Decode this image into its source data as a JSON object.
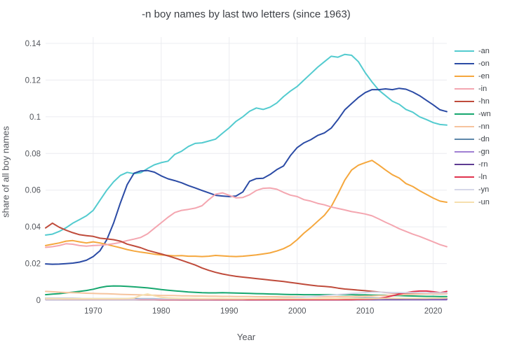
{
  "chart_data": {
    "type": "line",
    "title": "-n boy names by last two letters (since 1963)",
    "xlabel": "Year",
    "ylabel": "share of all boy names",
    "x_range": [
      1963,
      2022
    ],
    "y_range": [
      0,
      0.1435
    ],
    "x_tick_values": [
      1970,
      1980,
      1990,
      2000,
      2010,
      2020
    ],
    "x_tick_labels": [
      "1970",
      "1980",
      "1990",
      "2000",
      "2010",
      "2020"
    ],
    "y_tick_values": [
      0,
      0.02,
      0.04,
      0.06,
      0.08,
      0.1,
      0.12,
      0.14
    ],
    "y_tick_labels": [
      "0",
      "0.02",
      "0.04",
      "0.06",
      "0.08",
      "0.1",
      "0.12",
      "0.14"
    ],
    "grid": true,
    "legend_position": "right",
    "colors": {
      "grid": "#ebecf0",
      "zeroline": "#d9dbe6",
      "tick_text": "#53565c",
      "title_text": "#3d4046"
    },
    "years": [
      1963,
      1964,
      1965,
      1966,
      1967,
      1968,
      1969,
      1970,
      1971,
      1972,
      1973,
      1974,
      1975,
      1976,
      1977,
      1978,
      1979,
      1980,
      1981,
      1982,
      1983,
      1984,
      1985,
      1986,
      1987,
      1988,
      1989,
      1990,
      1991,
      1992,
      1993,
      1994,
      1995,
      1996,
      1997,
      1998,
      1999,
      2000,
      2001,
      2002,
      2003,
      2004,
      2005,
      2006,
      2007,
      2008,
      2009,
      2010,
      2011,
      2012,
      2013,
      2014,
      2015,
      2016,
      2017,
      2018,
      2019,
      2020,
      2021,
      2022
    ],
    "series": [
      {
        "name": "-an",
        "color": "#53cbcf",
        "values": [
          0.0355,
          0.036,
          0.0375,
          0.0395,
          0.042,
          0.044,
          0.046,
          0.049,
          0.0545,
          0.06,
          0.0645,
          0.068,
          0.0697,
          0.069,
          0.0695,
          0.0718,
          0.0738,
          0.075,
          0.0758,
          0.0795,
          0.0812,
          0.0838,
          0.0855,
          0.0858,
          0.0868,
          0.0878,
          0.091,
          0.094,
          0.0975,
          0.1,
          0.103,
          0.1048,
          0.104,
          0.1052,
          0.1075,
          0.111,
          0.114,
          0.1165,
          0.12,
          0.1235,
          0.127,
          0.13,
          0.133,
          0.1325,
          0.134,
          0.1335,
          0.13,
          0.124,
          0.119,
          0.1145,
          0.1115,
          0.1085,
          0.1068,
          0.104,
          0.1025,
          0.1,
          0.0985,
          0.0968,
          0.0958,
          0.0955
        ]
      },
      {
        "name": "-on",
        "color": "#2b4ba5",
        "values": [
          0.0198,
          0.0196,
          0.0197,
          0.0199,
          0.0202,
          0.0208,
          0.0218,
          0.0238,
          0.027,
          0.033,
          0.042,
          0.053,
          0.063,
          0.0692,
          0.0705,
          0.0707,
          0.0698,
          0.0678,
          0.0662,
          0.0652,
          0.064,
          0.0625,
          0.0612,
          0.0598,
          0.0585,
          0.0572,
          0.0568,
          0.0565,
          0.0568,
          0.059,
          0.0648,
          0.0663,
          0.0665,
          0.0685,
          0.0712,
          0.0732,
          0.0788,
          0.0832,
          0.0858,
          0.0875,
          0.0898,
          0.0912,
          0.0938,
          0.0985,
          0.1038,
          0.1072,
          0.1105,
          0.1132,
          0.1148,
          0.1148,
          0.1152,
          0.1148,
          0.1155,
          0.115,
          0.1135,
          0.1115,
          0.109,
          0.1065,
          0.1038,
          0.1028
        ]
      },
      {
        "name": "-en",
        "color": "#f5a73d",
        "values": [
          0.0298,
          0.0305,
          0.0312,
          0.0322,
          0.0325,
          0.0318,
          0.0312,
          0.0318,
          0.0312,
          0.0304,
          0.0295,
          0.0286,
          0.0276,
          0.0268,
          0.0262,
          0.0257,
          0.0251,
          0.0247,
          0.0244,
          0.0242,
          0.0243,
          0.024,
          0.024,
          0.0238,
          0.024,
          0.0244,
          0.0242,
          0.0239,
          0.0238,
          0.024,
          0.0243,
          0.0247,
          0.0252,
          0.0258,
          0.0268,
          0.0281,
          0.03,
          0.033,
          0.0366,
          0.0396,
          0.043,
          0.0463,
          0.051,
          0.058,
          0.0655,
          0.071,
          0.0736,
          0.075,
          0.0762,
          0.0737,
          0.071,
          0.0684,
          0.0666,
          0.0636,
          0.062,
          0.0597,
          0.0577,
          0.0557,
          0.054,
          0.0534
        ]
      },
      {
        "name": "-in",
        "color": "#f4a6b0",
        "values": [
          0.0288,
          0.0292,
          0.0298,
          0.0308,
          0.0305,
          0.0298,
          0.0295,
          0.0298,
          0.03,
          0.0303,
          0.0308,
          0.0315,
          0.0325,
          0.0333,
          0.0342,
          0.0362,
          0.0392,
          0.0422,
          0.0452,
          0.0478,
          0.049,
          0.0495,
          0.0502,
          0.0515,
          0.0548,
          0.0578,
          0.0585,
          0.0572,
          0.0558,
          0.056,
          0.0575,
          0.0598,
          0.061,
          0.0612,
          0.0605,
          0.0588,
          0.0573,
          0.0565,
          0.0548,
          0.054,
          0.0528,
          0.052,
          0.0508,
          0.05,
          0.0492,
          0.0483,
          0.0477,
          0.047,
          0.046,
          0.0443,
          0.0425,
          0.0408,
          0.039,
          0.0375,
          0.036,
          0.0348,
          0.0333,
          0.0318,
          0.0303,
          0.0292
        ]
      },
      {
        "name": "-hn",
        "color": "#bf4b3b",
        "values": [
          0.0394,
          0.042,
          0.0398,
          0.0382,
          0.0368,
          0.0357,
          0.0352,
          0.0348,
          0.0338,
          0.0334,
          0.033,
          0.0322,
          0.0306,
          0.0296,
          0.0286,
          0.0272,
          0.0262,
          0.0252,
          0.0242,
          0.023,
          0.0218,
          0.0205,
          0.0192,
          0.0176,
          0.0163,
          0.0152,
          0.0143,
          0.0136,
          0.013,
          0.0126,
          0.0122,
          0.0118,
          0.0114,
          0.011,
          0.0106,
          0.0102,
          0.0097,
          0.0092,
          0.0087,
          0.0082,
          0.0078,
          0.0075,
          0.0072,
          0.0066,
          0.0061,
          0.0058,
          0.0055,
          0.0052,
          0.0048,
          0.0045,
          0.0042,
          0.004,
          0.0039,
          0.0038,
          0.0037,
          0.0037,
          0.0036,
          0.0035,
          0.0035,
          0.0036
        ]
      },
      {
        "name": "-wn",
        "color": "#17a76f",
        "values": [
          0.003,
          0.0033,
          0.0036,
          0.004,
          0.0044,
          0.0048,
          0.0053,
          0.006,
          0.0069,
          0.0076,
          0.0078,
          0.0077,
          0.0075,
          0.0073,
          0.007,
          0.0067,
          0.0063,
          0.0058,
          0.0054,
          0.0051,
          0.0048,
          0.0045,
          0.0043,
          0.0041,
          0.004,
          0.004,
          0.0041,
          0.004,
          0.0039,
          0.0038,
          0.0037,
          0.0036,
          0.0035,
          0.0034,
          0.0033,
          0.0032,
          0.0031,
          0.0031,
          0.003,
          0.003,
          0.003,
          0.003,
          0.003,
          0.003,
          0.003,
          0.003,
          0.0029,
          0.0029,
          0.0028,
          0.0028,
          0.0027,
          0.0026,
          0.0025,
          0.0024,
          0.0023,
          0.0022,
          0.0021,
          0.0021,
          0.002,
          0.002
        ]
      },
      {
        "name": "-nn",
        "color": "#f6c49e",
        "values": [
          0.0048,
          0.0046,
          0.0044,
          0.0042,
          0.0041,
          0.004,
          0.0038,
          0.0037,
          0.0036,
          0.0035,
          0.0034,
          0.0032,
          0.0031,
          0.003,
          0.0029,
          0.0028,
          0.0027,
          0.0026,
          0.0026,
          0.0025,
          0.0024,
          0.0024,
          0.0023,
          0.0023,
          0.0022,
          0.0022,
          0.0021,
          0.0021,
          0.002,
          0.002,
          0.002,
          0.0019,
          0.0019,
          0.0019,
          0.0019,
          0.0018,
          0.0018,
          0.0018,
          0.0018,
          0.0018,
          0.0018,
          0.0018,
          0.0018,
          0.0019,
          0.0019,
          0.002,
          0.0021,
          0.0022,
          0.0023,
          0.0025,
          0.0026,
          0.0028,
          0.0029,
          0.0031,
          0.0032,
          0.0033,
          0.0034,
          0.0035,
          0.0035,
          0.0036
        ]
      },
      {
        "name": "-dn",
        "color": "#5d87aa",
        "values": [
          0.001,
          0.001,
          0.0009,
          0.0009,
          0.0009,
          0.0008,
          0.0008,
          0.0008,
          0.0008,
          0.0008,
          0.0008,
          0.0008,
          0.0008,
          0.0008,
          0.0008,
          0.0008,
          0.0008,
          0.0007,
          0.0007,
          0.0007,
          0.0007,
          0.0007,
          0.0007,
          0.0007,
          0.0007,
          0.0007,
          0.0007,
          0.0007,
          0.0007,
          0.0007,
          0.0007,
          0.0007,
          0.0007,
          0.0007,
          0.0007,
          0.0007,
          0.0007,
          0.0007,
          0.0007,
          0.0007,
          0.0007,
          0.0007,
          0.0007,
          0.0008,
          0.0009,
          0.001,
          0.0011,
          0.0012,
          0.0012,
          0.0011,
          0.001,
          0.001,
          0.0009,
          0.0009,
          0.0008,
          0.0008,
          0.0008,
          0.0007,
          0.0007,
          0.0007
        ]
      },
      {
        "name": "-gn",
        "color": "#a07fd3",
        "values": [
          0.0004,
          0.0004,
          0.0004,
          0.0004,
          0.0004,
          0.0004,
          0.0004,
          0.0004,
          0.0004,
          0.0004,
          0.0004,
          0.0004,
          0.0004,
          0.0004,
          0.0004,
          0.0004,
          0.0004,
          0.0004,
          0.0004,
          0.0004,
          0.0003,
          0.0003,
          0.0003,
          0.0003,
          0.0003,
          0.0003,
          0.0003,
          0.0003,
          0.0003,
          0.0003,
          0.0003,
          0.0003,
          0.0003,
          0.0003,
          0.0003,
          0.0003,
          0.0003,
          0.0003,
          0.0003,
          0.0003,
          0.0003,
          0.0003,
          0.0003,
          0.0003,
          0.0003,
          0.0003,
          0.0003,
          0.0003,
          0.0003,
          0.0003,
          0.0003,
          0.0003,
          0.0003,
          0.0003,
          0.0003,
          0.0003,
          0.0003,
          0.0003,
          0.0003,
          0.0003
        ]
      },
      {
        "name": "-rn",
        "color": "#5e3b92",
        "values": [
          0.0009,
          0.0009,
          0.0008,
          0.0008,
          0.0008,
          0.0008,
          0.0007,
          0.0007,
          0.0007,
          0.0007,
          0.0007,
          0.0006,
          0.0006,
          0.0006,
          0.0006,
          0.0006,
          0.0006,
          0.0006,
          0.0005,
          0.0005,
          0.0005,
          0.0005,
          0.0005,
          0.0005,
          0.0005,
          0.0005,
          0.0005,
          0.0005,
          0.0005,
          0.0005,
          0.0005,
          0.0005,
          0.0005,
          0.0005,
          0.0005,
          0.0005,
          0.0005,
          0.0005,
          0.0005,
          0.0005,
          0.0005,
          0.0005,
          0.0005,
          0.0005,
          0.0005,
          0.0005,
          0.0005,
          0.0005,
          0.0005,
          0.0006,
          0.0006,
          0.0006,
          0.0006,
          0.0007,
          0.0007,
          0.0007,
          0.0007,
          0.0008,
          0.0008,
          0.0008
        ]
      },
      {
        "name": "-ln",
        "color": "#e0334e",
        "values": [
          0.0005,
          0.0005,
          0.0005,
          0.0004,
          0.0004,
          0.0004,
          0.0004,
          0.0004,
          0.0004,
          0.0004,
          0.0004,
          0.0004,
          0.0004,
          0.0004,
          0.0004,
          0.0004,
          0.0004,
          0.0003,
          0.0003,
          0.0003,
          0.0003,
          0.0003,
          0.0003,
          0.0003,
          0.0003,
          0.0003,
          0.0003,
          0.0003,
          0.0003,
          0.0003,
          0.0003,
          0.0003,
          0.0003,
          0.0003,
          0.0003,
          0.0003,
          0.0003,
          0.0003,
          0.0003,
          0.0003,
          0.0003,
          0.0003,
          0.0003,
          0.0003,
          0.0003,
          0.0003,
          0.0004,
          0.0005,
          0.0006,
          0.001,
          0.0016,
          0.0024,
          0.0033,
          0.0041,
          0.0047,
          0.005,
          0.005,
          0.0046,
          0.0041,
          0.0048
        ]
      },
      {
        "name": "-yn",
        "color": "#d5d7e9",
        "values": [
          0.0005,
          0.0005,
          0.0005,
          0.0005,
          0.0005,
          0.0005,
          0.0005,
          0.0005,
          0.0005,
          0.0005,
          0.0005,
          0.0005,
          0.0005,
          0.0005,
          0.0006,
          0.0006,
          0.0006,
          0.0006,
          0.0006,
          0.0006,
          0.0006,
          0.0006,
          0.0006,
          0.0006,
          0.0006,
          0.0007,
          0.0007,
          0.0007,
          0.0007,
          0.0007,
          0.0008,
          0.0008,
          0.0009,
          0.0009,
          0.001,
          0.0011,
          0.0012,
          0.0014,
          0.0016,
          0.0019,
          0.0022,
          0.0025,
          0.0028,
          0.0031,
          0.0034,
          0.0037,
          0.0039,
          0.0042,
          0.0044,
          0.0044,
          0.0043,
          0.0042,
          0.0042,
          0.0041,
          0.0041,
          0.0041,
          0.004,
          0.004,
          0.004,
          0.004
        ]
      },
      {
        "name": "-un",
        "color": "#f6dfae",
        "values": [
          0.0009,
          0.0009,
          0.0008,
          0.0008,
          0.0008,
          0.0008,
          0.0008,
          0.0008,
          0.0008,
          0.0008,
          0.0008,
          0.0008,
          0.0009,
          0.0012,
          0.0026,
          0.0034,
          0.0024,
          0.0016,
          0.0013,
          0.0011,
          0.001,
          0.001,
          0.001,
          0.0009,
          0.0009,
          0.0009,
          0.0009,
          0.0008,
          0.0008,
          0.0008,
          0.0008,
          0.0008,
          0.0008,
          0.0008,
          0.0008,
          0.0008,
          0.0008,
          0.0008,
          0.0008,
          0.0008,
          0.0008,
          0.0008,
          0.0008,
          0.0008,
          0.0009,
          0.0009,
          0.0009,
          0.0009,
          0.0009,
          0.0009,
          0.001,
          0.001,
          0.001,
          0.001,
          0.001,
          0.001,
          0.001,
          0.0011,
          0.0011,
          0.0012
        ]
      }
    ]
  }
}
